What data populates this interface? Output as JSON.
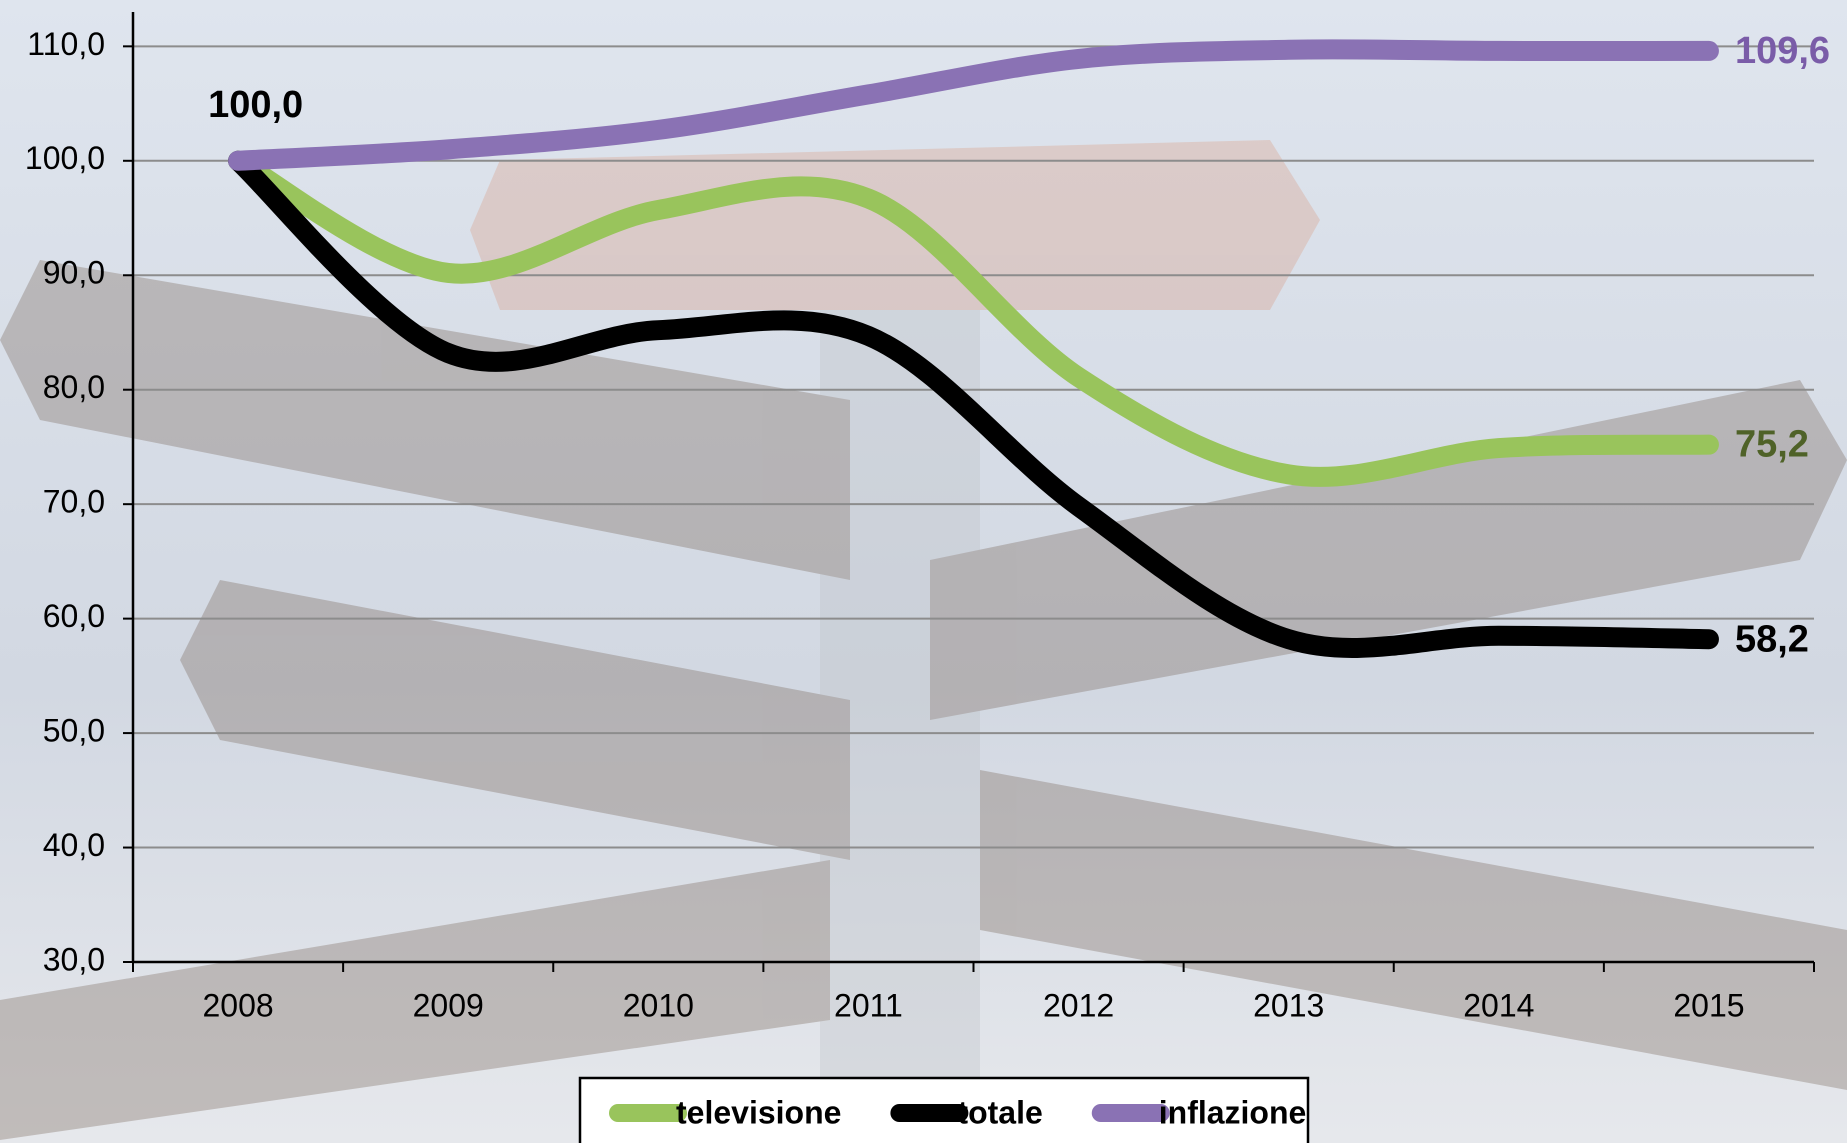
{
  "chart_data": {
    "type": "line",
    "categories": [
      "2008",
      "2009",
      "2010",
      "2011",
      "2012",
      "2013",
      "2014",
      "2015"
    ],
    "series": [
      {
        "name": "televisione",
        "color": "#99c45c",
        "label_color": "#4f6228",
        "values": [
          100.0,
          90.2,
          95.7,
          96.7,
          81.1,
          72.6,
          74.9,
          75.2
        ],
        "value_labels": [
          null,
          null,
          null,
          null,
          null,
          null,
          null,
          "75,2"
        ]
      },
      {
        "name": "totale",
        "color": "#000000",
        "label_color": "#000000",
        "values": [
          100.0,
          83.2,
          85.2,
          84.7,
          69.8,
          58.2,
          58.5,
          58.2
        ],
        "value_labels": [
          "100,0",
          null,
          null,
          null,
          null,
          null,
          null,
          "58,2"
        ]
      },
      {
        "name": "inflazione",
        "color": "#8a72b4",
        "label_color": "#7a5ca8",
        "values": [
          100.0,
          101.0,
          102.7,
          105.8,
          108.9,
          109.7,
          109.6,
          109.6
        ],
        "value_labels": [
          null,
          null,
          null,
          null,
          null,
          null,
          null,
          "109,6"
        ]
      }
    ],
    "ylim": [
      30,
      113
    ],
    "yticks": [
      {
        "value": 30,
        "label": "30,0"
      },
      {
        "value": 40,
        "label": "40,0"
      },
      {
        "value": 50,
        "label": "50,0"
      },
      {
        "value": 60,
        "label": "60,0"
      },
      {
        "value": 70,
        "label": "70,0"
      },
      {
        "value": 80,
        "label": "80,0"
      },
      {
        "value": 90,
        "label": "90,0"
      },
      {
        "value": 100,
        "label": "100,0"
      },
      {
        "value": 110,
        "label": "110,0"
      }
    ],
    "grid": true,
    "legend": "bottom"
  }
}
